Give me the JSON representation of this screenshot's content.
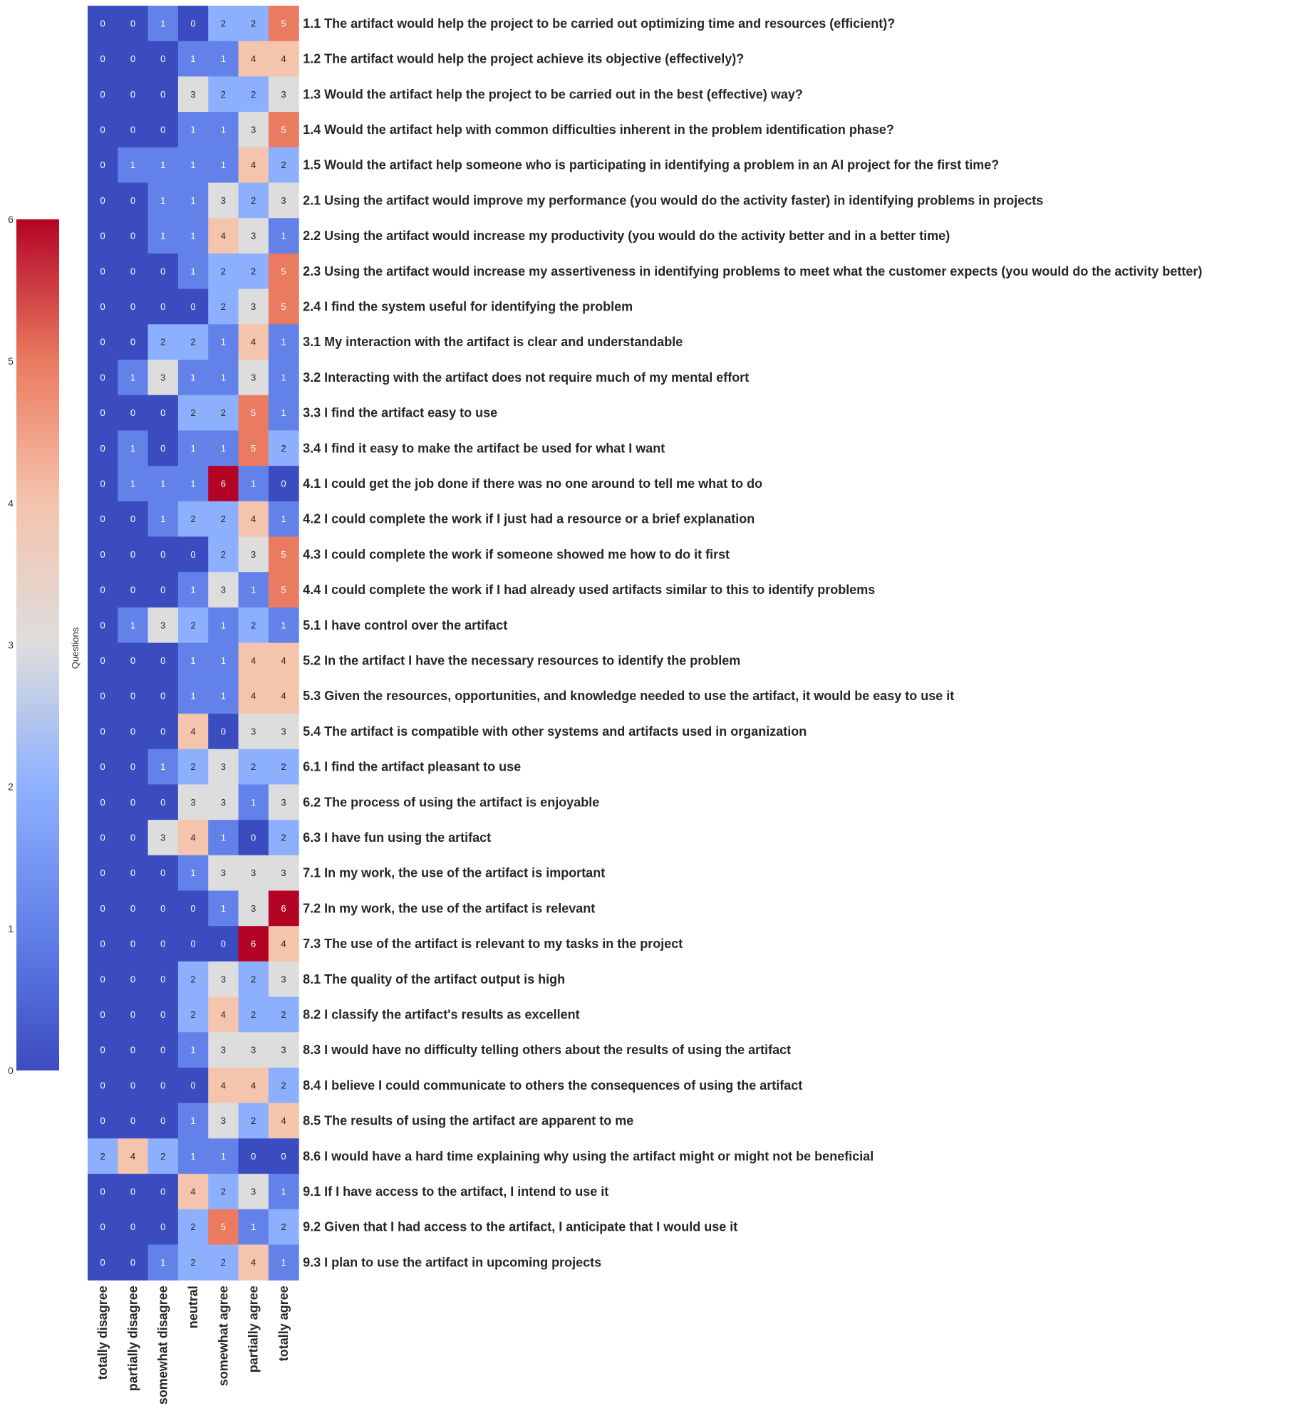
{
  "chart_data": {
    "type": "heatmap",
    "title": "",
    "xlabel": "",
    "ylabel": "Questions",
    "columns": [
      "totally disagree",
      "partially disagree",
      "somewhat disagree",
      "neutral",
      "somewhat agree",
      "partially agree",
      "totally agree"
    ],
    "rows": [
      "1.1 The artifact would help the project to be carried out optimizing time and resources (efficient)?",
      "1.2 The artifact would help the project achieve its objective (effectively)?",
      "1.3 Would the artifact help the project to be carried out in the best (effective) way?",
      "1.4 Would the artifact help with common difficulties inherent in the problem identification phase?",
      "1.5 Would the artifact help someone who is participating in identifying a problem in an AI project for the first time?",
      "2.1  Using the artifact would improve my performance (you would do the activity faster) in identifying problems in projects",
      "2.2  Using the artifact would increase my productivity (you would do the activity better and in a better time)",
      "2.3  Using the artifact would increase my assertiveness in identifying problems to meet what the customer expects (you would do the activity better)",
      "2.4 I find the system useful for identifying the problem",
      "3.1 My interaction with the artifact is clear and understandable",
      "3.2 Interacting with the artifact does not require much of my mental effort",
      "3.3 I find the artifact easy to use",
      "3.4 I find it easy to make the artifact be used for what I want",
      "4.1 I could get the job done if there was no one around to tell me what to do",
      "4.2 I could complete the work if I just had a resource or a brief explanation",
      "4.3 I could complete the work if someone showed me how to do it first",
      "4.4 I could complete the work if I had already used artifacts similar to this to identify problems",
      "5.1 I have control over the artifact",
      "5.2 In the artifact I have the necessary resources to identify the problem",
      "5.3 Given the resources, opportunities, and knowledge needed to use the artifact, it would be easy to use it",
      "5.4 The artifact is compatible with other systems and artifacts used in organization",
      "6.1 I find the artifact pleasant to use",
      "6.2 The process of using the artifact is enjoyable",
      "6.3 I have fun using the artifact",
      "7.1 In my work, the use of the artifact is important",
      "7.2 In my work, the use of the artifact is relevant",
      "7.3 The use of the artifact is relevant to my tasks in the project",
      "8.1 The quality of the artifact output is high",
      "8.2 I classify the artifact's results as excellent",
      "8.3 I would have no difficulty telling others about the results of using the artifact",
      "8.4 I believe I could communicate to others the consequences of using the artifact",
      "8.5 The results of using the artifact are apparent to me",
      "8.6 I would have a hard time explaining why using the artifact might or might not be beneficial",
      "9.1 If I have access to the artifact, I intend to use it",
      "9.2 Given that I had access to the artifact, I anticipate that I would use it",
      "9.3 I plan to use the artifact in upcoming projects"
    ],
    "values": [
      [
        0,
        0,
        1,
        0,
        2,
        2,
        5
      ],
      [
        0,
        0,
        0,
        1,
        1,
        4,
        4
      ],
      [
        0,
        0,
        0,
        3,
        2,
        2,
        3
      ],
      [
        0,
        0,
        0,
        1,
        1,
        3,
        5
      ],
      [
        0,
        1,
        1,
        1,
        1,
        4,
        2
      ],
      [
        0,
        0,
        1,
        1,
        3,
        2,
        3
      ],
      [
        0,
        0,
        1,
        1,
        4,
        3,
        1
      ],
      [
        0,
        0,
        0,
        1,
        2,
        2,
        5
      ],
      [
        0,
        0,
        0,
        0,
        2,
        3,
        5
      ],
      [
        0,
        0,
        2,
        2,
        1,
        4,
        1
      ],
      [
        0,
        1,
        3,
        1,
        1,
        3,
        1
      ],
      [
        0,
        0,
        0,
        2,
        2,
        5,
        1
      ],
      [
        0,
        1,
        0,
        1,
        1,
        5,
        2
      ],
      [
        0,
        1,
        1,
        1,
        6,
        1,
        0
      ],
      [
        0,
        0,
        1,
        2,
        2,
        4,
        1
      ],
      [
        0,
        0,
        0,
        0,
        2,
        3,
        5
      ],
      [
        0,
        0,
        0,
        1,
        3,
        1,
        5
      ],
      [
        0,
        1,
        3,
        2,
        1,
        2,
        1
      ],
      [
        0,
        0,
        0,
        1,
        1,
        4,
        4
      ],
      [
        0,
        0,
        0,
        1,
        1,
        4,
        4
      ],
      [
        0,
        0,
        0,
        4,
        0,
        3,
        3
      ],
      [
        0,
        0,
        1,
        2,
        3,
        2,
        2
      ],
      [
        0,
        0,
        0,
        3,
        3,
        1,
        3
      ],
      [
        0,
        0,
        3,
        4,
        1,
        0,
        2
      ],
      [
        0,
        0,
        0,
        1,
        3,
        3,
        3
      ],
      [
        0,
        0,
        0,
        0,
        1,
        3,
        6
      ],
      [
        0,
        0,
        0,
        0,
        0,
        6,
        4
      ],
      [
        0,
        0,
        0,
        2,
        3,
        2,
        3
      ],
      [
        0,
        0,
        0,
        2,
        4,
        2,
        2
      ],
      [
        0,
        0,
        0,
        1,
        3,
        3,
        3
      ],
      [
        0,
        0,
        0,
        0,
        4,
        4,
        2
      ],
      [
        0,
        0,
        0,
        1,
        3,
        2,
        4
      ],
      [
        2,
        4,
        2,
        1,
        1,
        0,
        0
      ],
      [
        0,
        0,
        0,
        4,
        2,
        3,
        1
      ],
      [
        0,
        0,
        0,
        2,
        5,
        1,
        2
      ],
      [
        0,
        0,
        1,
        2,
        2,
        4,
        1
      ]
    ],
    "vmin": 0,
    "vmax": 6,
    "colormap": "coolwarm",
    "colorbar_ticks": [
      "0",
      "1",
      "2",
      "3",
      "4",
      "5",
      "6"
    ],
    "colorbar_position": "left"
  }
}
